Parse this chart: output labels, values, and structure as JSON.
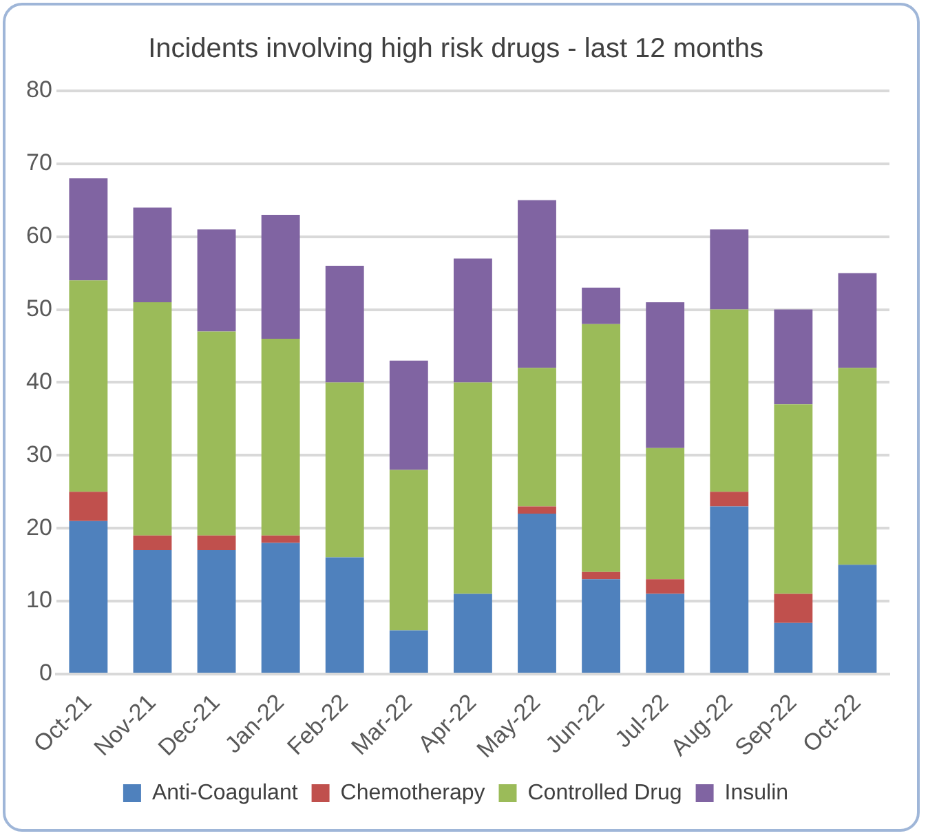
{
  "chart_data": {
    "type": "bar",
    "title": "Incidents involving high risk drugs - last 12 months",
    "categories": [
      "Oct-21",
      "Nov-21",
      "Dec-21",
      "Jan-22",
      "Feb-22",
      "Mar-22",
      "Apr-22",
      "May-22",
      "Jun-22",
      "Jul-22",
      "Aug-22",
      "Sep-22",
      "Oct-22"
    ],
    "series": [
      {
        "name": "Anti-Coagulant",
        "color": "#4f81bd",
        "values": [
          21,
          17,
          17,
          18,
          16,
          6,
          11,
          22,
          13,
          11,
          23,
          7,
          15
        ]
      },
      {
        "name": "Chemotherapy",
        "color": "#c0504d",
        "values": [
          4,
          2,
          2,
          1,
          0,
          0,
          0,
          1,
          1,
          2,
          2,
          4,
          0
        ]
      },
      {
        "name": "Controlled Drug",
        "color": "#9bbb59",
        "values": [
          29,
          32,
          28,
          27,
          24,
          22,
          29,
          19,
          34,
          18,
          25,
          26,
          27
        ]
      },
      {
        "name": "Insulin",
        "color": "#8064a2",
        "values": [
          14,
          13,
          14,
          17,
          16,
          15,
          17,
          23,
          5,
          20,
          11,
          13,
          13
        ]
      }
    ],
    "stacked": true,
    "ylim": [
      0,
      80
    ],
    "yticks": [
      0,
      10,
      20,
      30,
      40,
      50,
      60,
      70,
      80
    ],
    "grid": "y",
    "legend": "bottom"
  }
}
